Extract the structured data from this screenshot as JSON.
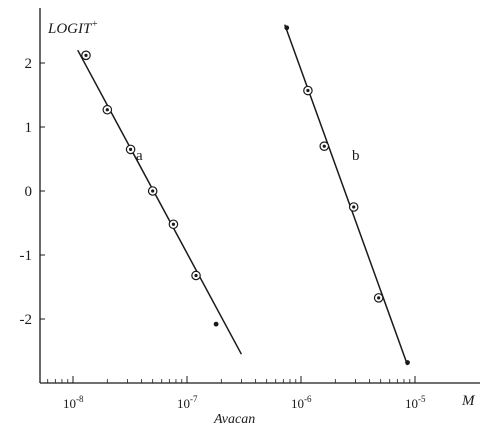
{
  "chart_data": {
    "type": "scatter",
    "ylabel": "LOGIT",
    "ylabel_superscript": "+",
    "xlabel": "Avacan",
    "x_unit": "M",
    "x_scale": "log",
    "xlim": [
      6e-09,
      1.45e-05
    ],
    "ylim": [
      -2.75,
      2.55
    ],
    "x_ticks": [
      1e-08,
      1e-07,
      1e-06,
      1e-05
    ],
    "x_tick_labels": [
      {
        "base": "10",
        "exp": "-8"
      },
      {
        "base": "10",
        "exp": "-7"
      },
      {
        "base": "10",
        "exp": "-6"
      },
      {
        "base": "10",
        "exp": "-5"
      }
    ],
    "y_ticks": [
      2,
      1,
      0,
      -1,
      -2
    ],
    "y_tick_labels": [
      "2",
      "1",
      "0",
      "-1",
      "-2"
    ],
    "grid": false,
    "series": [
      {
        "name": "a",
        "points": [
          {
            "x": 1.3e-08,
            "y": 2.12,
            "marker": "circled"
          },
          {
            "x": 2e-08,
            "y": 1.27,
            "marker": "circled"
          },
          {
            "x": 3.2e-08,
            "y": 0.65,
            "marker": "circled"
          },
          {
            "x": 5e-08,
            "y": 0.0,
            "marker": "circled"
          },
          {
            "x": 7.6e-08,
            "y": -0.52,
            "marker": "circled"
          },
          {
            "x": 1.2e-07,
            "y": -1.32,
            "marker": "circled"
          },
          {
            "x": 1.8e-07,
            "y": -2.08,
            "marker": "dot"
          }
        ],
        "fit_line": [
          {
            "x": 1.1e-08,
            "y": 2.2
          },
          {
            "x": 3e-07,
            "y": -2.55
          }
        ]
      },
      {
        "name": "b",
        "points": [
          {
            "x": 7.5e-07,
            "y": 2.55,
            "marker": "dot"
          },
          {
            "x": 1.15e-06,
            "y": 1.57,
            "marker": "circled"
          },
          {
            "x": 1.6e-06,
            "y": 0.7,
            "marker": "circled"
          },
          {
            "x": 2.9e-06,
            "y": -0.25,
            "marker": "circled"
          },
          {
            "x": 4.8e-06,
            "y": -1.67,
            "marker": "circled"
          },
          {
            "x": 8.6e-06,
            "y": -2.68,
            "marker": "dot"
          }
        ],
        "fit_line": [
          {
            "x": 7.2e-07,
            "y": 2.6
          },
          {
            "x": 8.6e-06,
            "y": -2.72
          }
        ]
      }
    ]
  }
}
